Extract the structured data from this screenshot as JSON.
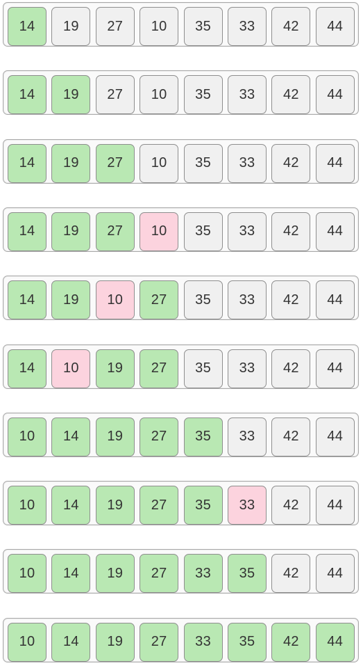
{
  "colors": {
    "sorted": "#b9e8b3",
    "unsorted": "#f0f0f0",
    "current": "#fcd3de"
  },
  "rows": [
    {
      "cells": [
        {
          "value": "14",
          "state": "sorted"
        },
        {
          "value": "19",
          "state": "unsorted"
        },
        {
          "value": "27",
          "state": "unsorted"
        },
        {
          "value": "10",
          "state": "unsorted"
        },
        {
          "value": "35",
          "state": "unsorted"
        },
        {
          "value": "33",
          "state": "unsorted"
        },
        {
          "value": "42",
          "state": "unsorted"
        },
        {
          "value": "44",
          "state": "unsorted"
        }
      ]
    },
    {
      "cells": [
        {
          "value": "14",
          "state": "sorted"
        },
        {
          "value": "19",
          "state": "sorted"
        },
        {
          "value": "27",
          "state": "unsorted"
        },
        {
          "value": "10",
          "state": "unsorted"
        },
        {
          "value": "35",
          "state": "unsorted"
        },
        {
          "value": "33",
          "state": "unsorted"
        },
        {
          "value": "42",
          "state": "unsorted"
        },
        {
          "value": "44",
          "state": "unsorted"
        }
      ]
    },
    {
      "cells": [
        {
          "value": "14",
          "state": "sorted"
        },
        {
          "value": "19",
          "state": "sorted"
        },
        {
          "value": "27",
          "state": "sorted"
        },
        {
          "value": "10",
          "state": "unsorted"
        },
        {
          "value": "35",
          "state": "unsorted"
        },
        {
          "value": "33",
          "state": "unsorted"
        },
        {
          "value": "42",
          "state": "unsorted"
        },
        {
          "value": "44",
          "state": "unsorted"
        }
      ]
    },
    {
      "cells": [
        {
          "value": "14",
          "state": "sorted"
        },
        {
          "value": "19",
          "state": "sorted"
        },
        {
          "value": "27",
          "state": "sorted"
        },
        {
          "value": "10",
          "state": "current"
        },
        {
          "value": "35",
          "state": "unsorted"
        },
        {
          "value": "33",
          "state": "unsorted"
        },
        {
          "value": "42",
          "state": "unsorted"
        },
        {
          "value": "44",
          "state": "unsorted"
        }
      ]
    },
    {
      "cells": [
        {
          "value": "14",
          "state": "sorted"
        },
        {
          "value": "19",
          "state": "sorted"
        },
        {
          "value": "10",
          "state": "current"
        },
        {
          "value": "27",
          "state": "sorted"
        },
        {
          "value": "35",
          "state": "unsorted"
        },
        {
          "value": "33",
          "state": "unsorted"
        },
        {
          "value": "42",
          "state": "unsorted"
        },
        {
          "value": "44",
          "state": "unsorted"
        }
      ]
    },
    {
      "cells": [
        {
          "value": "14",
          "state": "sorted"
        },
        {
          "value": "10",
          "state": "current"
        },
        {
          "value": "19",
          "state": "sorted"
        },
        {
          "value": "27",
          "state": "sorted"
        },
        {
          "value": "35",
          "state": "unsorted"
        },
        {
          "value": "33",
          "state": "unsorted"
        },
        {
          "value": "42",
          "state": "unsorted"
        },
        {
          "value": "44",
          "state": "unsorted"
        }
      ]
    },
    {
      "cells": [
        {
          "value": "10",
          "state": "sorted"
        },
        {
          "value": "14",
          "state": "sorted"
        },
        {
          "value": "19",
          "state": "sorted"
        },
        {
          "value": "27",
          "state": "sorted"
        },
        {
          "value": "35",
          "state": "sorted"
        },
        {
          "value": "33",
          "state": "unsorted"
        },
        {
          "value": "42",
          "state": "unsorted"
        },
        {
          "value": "44",
          "state": "unsorted"
        }
      ]
    },
    {
      "cells": [
        {
          "value": "10",
          "state": "sorted"
        },
        {
          "value": "14",
          "state": "sorted"
        },
        {
          "value": "19",
          "state": "sorted"
        },
        {
          "value": "27",
          "state": "sorted"
        },
        {
          "value": "35",
          "state": "sorted"
        },
        {
          "value": "33",
          "state": "current"
        },
        {
          "value": "42",
          "state": "unsorted"
        },
        {
          "value": "44",
          "state": "unsorted"
        }
      ]
    },
    {
      "cells": [
        {
          "value": "10",
          "state": "sorted"
        },
        {
          "value": "14",
          "state": "sorted"
        },
        {
          "value": "19",
          "state": "sorted"
        },
        {
          "value": "27",
          "state": "sorted"
        },
        {
          "value": "33",
          "state": "sorted"
        },
        {
          "value": "35",
          "state": "sorted"
        },
        {
          "value": "42",
          "state": "unsorted"
        },
        {
          "value": "44",
          "state": "unsorted"
        }
      ]
    },
    {
      "cells": [
        {
          "value": "10",
          "state": "sorted"
        },
        {
          "value": "14",
          "state": "sorted"
        },
        {
          "value": "19",
          "state": "sorted"
        },
        {
          "value": "27",
          "state": "sorted"
        },
        {
          "value": "33",
          "state": "sorted"
        },
        {
          "value": "35",
          "state": "sorted"
        },
        {
          "value": "42",
          "state": "sorted"
        },
        {
          "value": "44",
          "state": "sorted"
        }
      ]
    }
  ]
}
